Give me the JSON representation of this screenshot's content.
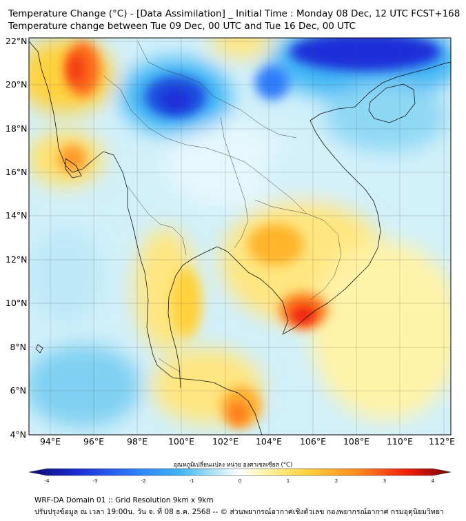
{
  "header": {
    "title_line1": "Temperature Change (°C) - [Data Assimilation] _ Initial Time : Monday 08 Dec, 12 UTC FCST+168",
    "title_line2": "Temperature change between Tue 09 Dec, 00 UTC and Tue 16 Dec, 00 UTC"
  },
  "map": {
    "lat_labels": [
      "22°N",
      "20°N",
      "18°N",
      "16°N",
      "14°N",
      "12°N",
      "10°N",
      "8°N",
      "6°N",
      "4°N"
    ],
    "lon_labels": [
      "94°E",
      "96°E",
      "98°E",
      "100°E",
      "102°E",
      "104°E",
      "106°E",
      "108°E",
      "110°E",
      "112°E"
    ],
    "extent": {
      "lon": [
        93,
        112.3
      ],
      "lat": [
        4,
        22.2
      ]
    }
  },
  "colorbar": {
    "title": "อุณหภูมิเปลี่ยนแปลง หน่วย องศาเซลเซียส (°C)",
    "ticks": [
      "-4",
      "-3",
      "-2",
      "-1",
      "0",
      "1",
      "2",
      "3",
      "4"
    ],
    "range": [
      -4,
      4
    ],
    "colors": [
      "#0a0a6e",
      "#1c2fd9",
      "#2f7dfc",
      "#3fb6f5",
      "#bfeaf8",
      "#ffffff",
      "#fdf6a8",
      "#ffd23c",
      "#ff8a1e",
      "#f01a0a",
      "#7a0000"
    ]
  },
  "footer": {
    "line1": "WRF-DA Domain 01 :: Grid Resolution 9km x 9km",
    "line2": "ปรับปรุงข้อมูล ณ เวลา 19:00น. วัน จ. ที่ 08 ธ.ค. 2568 -- © ส่วนพยากรณ์อากาศเชิงตัวเลข กองพยากรณ์อากาศ กรมอุตุนิยมวิทยา"
  }
}
